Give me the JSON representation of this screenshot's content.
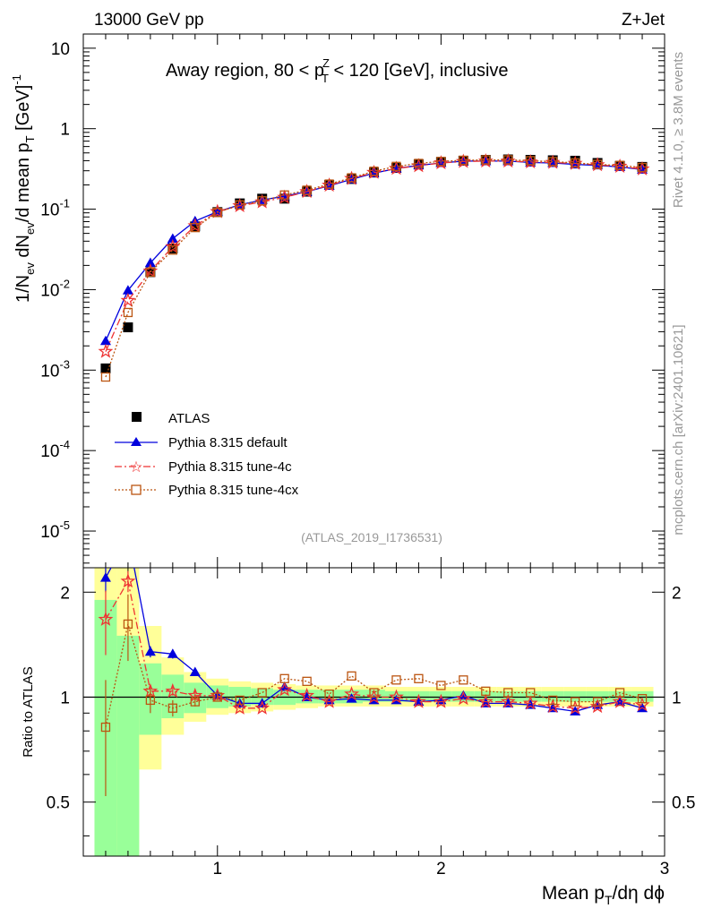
{
  "header": {
    "energy": "13000 GeV pp",
    "process": "Z+Jet",
    "title_parts": [
      "Away region, 80 < p",
      "Z",
      "T",
      " < 120 [GeV], inclusive"
    ],
    "analysis_id": "(ATLAS_2019_I1736531)",
    "rivet_label": "Rivet 4.1.0, ≥ 3.8M events",
    "source_label": "mcplots.cern.ch [arXiv:2401.10621]"
  },
  "axes": {
    "ylabel_main_parts": [
      "1/N",
      "ev",
      " dN",
      "ev",
      "/d mean p",
      "T",
      " [GeV]",
      "-1"
    ],
    "ylabel_ratio": "Ratio to ATLAS",
    "xlabel_parts": [
      "Mean p",
      "T",
      "/dη dϕ"
    ],
    "x_ticks": [
      "1",
      "2",
      "3"
    ],
    "y_main_ticks": [
      {
        "base": "10",
        "exp": "-5",
        "value": 1e-05
      },
      {
        "base": "10",
        "exp": "-4",
        "value": 0.0001
      },
      {
        "base": "10",
        "exp": "-3",
        "value": 0.001
      },
      {
        "base": "10",
        "exp": "-2",
        "value": 0.01
      },
      {
        "base": "10",
        "exp": "-1",
        "value": 0.1
      },
      {
        "base": "1",
        "exp": "",
        "value": 1
      },
      {
        "base": "10",
        "exp": "",
        "value": 10
      }
    ],
    "y_ratio_ticks": [
      "0.5",
      "1",
      "2"
    ]
  },
  "colors": {
    "atlas": "#000000",
    "default": "#0000dd",
    "tune4c": "#ee3333",
    "tune4cx": "#bb5511",
    "band_inner": "#99ff99",
    "band_outer": "#ffff99"
  },
  "legend": [
    {
      "key": "atlas",
      "label": "ATLAS"
    },
    {
      "key": "default",
      "label": "Pythia 8.315 default"
    },
    {
      "key": "tune4c",
      "label": "Pythia 8.315 tune-4c"
    },
    {
      "key": "tune4cx",
      "label": "Pythia 8.315 tune-4cx"
    }
  ],
  "chart_data": {
    "type": "line",
    "title": "Away region, 80 < pT(Z) < 120 [GeV], inclusive",
    "xlabel": "Mean pT/dη dϕ",
    "ylabel": "1/Nev dNev/d mean pT [GeV]^-1",
    "xlim": [
      0.4,
      3.0
    ],
    "ylim": [
      3.5e-06,
      15
    ],
    "yscale": "log",
    "ratio_ylim": [
      0.35,
      2.35
    ],
    "x": [
      0.5,
      0.6,
      0.7,
      0.8,
      0.9,
      1.0,
      1.1,
      1.2,
      1.3,
      1.4,
      1.5,
      1.6,
      1.7,
      1.8,
      1.9,
      2.0,
      2.1,
      2.2,
      2.3,
      2.4,
      2.5,
      2.6,
      2.7,
      2.8,
      2.9
    ],
    "series": [
      {
        "name": "ATLAS",
        "key": "atlas",
        "marker": "square",
        "values": [
          0.00105,
          0.0034,
          0.0165,
          0.0325,
          0.061,
          0.092,
          0.118,
          0.135,
          0.135,
          0.165,
          0.2,
          0.237,
          0.285,
          0.325,
          0.36,
          0.385,
          0.4,
          0.41,
          0.415,
          0.41,
          0.405,
          0.4,
          0.375,
          0.345,
          0.335
        ]
      },
      {
        "name": "Pythia 8.315 default",
        "key": "default",
        "marker": "triangle",
        "linestyle": "solid",
        "values": [
          0.0023,
          0.0098,
          0.0215,
          0.043,
          0.071,
          0.093,
          0.113,
          0.13,
          0.145,
          0.165,
          0.195,
          0.235,
          0.28,
          0.32,
          0.35,
          0.375,
          0.395,
          0.395,
          0.395,
          0.38,
          0.375,
          0.36,
          0.35,
          0.335,
          0.31
        ],
        "ratio": [
          2.2,
          2.9,
          1.35,
          1.33,
          1.18,
          1.01,
          0.96,
          0.96,
          1.07,
          1.0,
          0.98,
          0.99,
          0.98,
          0.98,
          0.97,
          0.98,
          1.01,
          0.96,
          0.96,
          0.95,
          0.93,
          0.91,
          0.95,
          0.97,
          0.93
        ],
        "ratio_err": [
          0.2,
          0.0,
          0.05,
          0.04,
          0.03,
          0.02,
          0.0,
          0.0,
          0.0,
          0.0,
          0.0,
          0.0,
          0.0,
          0.0,
          0.0,
          0.0,
          0.0,
          0.0,
          0.0,
          0.0,
          0.0,
          0.0,
          0.0,
          0.0,
          0.0
        ]
      },
      {
        "name": "Pythia 8.315 tune-4c",
        "key": "tune4c",
        "marker": "star",
        "linestyle": "dashdot",
        "values": [
          0.0017,
          0.0073,
          0.017,
          0.034,
          0.062,
          0.093,
          0.11,
          0.123,
          0.14,
          0.165,
          0.198,
          0.24,
          0.285,
          0.32,
          0.345,
          0.375,
          0.39,
          0.395,
          0.395,
          0.385,
          0.38,
          0.37,
          0.355,
          0.34,
          0.315
        ],
        "ratio": [
          1.67,
          2.15,
          1.04,
          1.04,
          1.01,
          1.01,
          0.93,
          0.93,
          1.05,
          1.01,
          0.97,
          1.02,
          1.0,
          1.0,
          0.97,
          0.97,
          0.99,
          0.97,
          0.97,
          0.96,
          0.94,
          0.93,
          0.94,
          0.97,
          0.95
        ],
        "ratio_err": [
          0.35,
          0.15,
          0.04,
          0.03,
          0.03,
          0.02,
          0.0,
          0.0,
          0.0,
          0.0,
          0.0,
          0.0,
          0.0,
          0.0,
          0.0,
          0.0,
          0.0,
          0.0,
          0.0,
          0.0,
          0.0,
          0.0,
          0.0,
          0.0,
          0.0
        ]
      },
      {
        "name": "Pythia 8.315 tune-4cx",
        "key": "tune4cx",
        "marker": "open-square",
        "linestyle": "dotted",
        "values": [
          0.00082,
          0.0052,
          0.0165,
          0.031,
          0.059,
          0.091,
          0.113,
          0.127,
          0.15,
          0.172,
          0.205,
          0.245,
          0.296,
          0.34,
          0.37,
          0.392,
          0.405,
          0.41,
          0.41,
          0.4,
          0.39,
          0.375,
          0.36,
          0.35,
          0.33
        ],
        "ratio": [
          0.82,
          1.62,
          0.98,
          0.93,
          0.97,
          1.0,
          0.98,
          1.03,
          1.13,
          1.11,
          1.02,
          1.15,
          1.03,
          1.12,
          1.13,
          1.08,
          1.12,
          1.04,
          1.03,
          1.03,
          0.98,
          0.97,
          0.97,
          1.03,
          0.99
        ],
        "ratio_err": [
          0.3,
          0.35,
          0.08,
          0.05,
          0.03,
          0.02,
          0.0,
          0.0,
          0.0,
          0.0,
          0.0,
          0.0,
          0.0,
          0.0,
          0.0,
          0.0,
          0.0,
          0.0,
          0.0,
          0.0,
          0.0,
          0.0,
          0.0,
          0.0,
          0.0
        ]
      }
    ],
    "uncertainty_bands": {
      "x_low": [
        0.45,
        0.55,
        0.65,
        0.75,
        0.85,
        0.95,
        1.05,
        1.15,
        1.25,
        1.35,
        1.45,
        1.55,
        1.65,
        1.75,
        1.85,
        1.95,
        2.05,
        2.15,
        2.25,
        2.35,
        2.45,
        2.55,
        2.65,
        2.75,
        2.85
      ],
      "x_high": [
        0.55,
        0.65,
        0.75,
        0.85,
        0.95,
        1.05,
        1.15,
        1.25,
        1.35,
        1.45,
        1.55,
        1.65,
        1.75,
        1.85,
        1.95,
        2.05,
        2.15,
        2.25,
        2.35,
        2.45,
        2.55,
        2.65,
        2.75,
        2.85,
        2.95
      ],
      "inner_low": [
        0.35,
        0.35,
        0.78,
        0.87,
        0.9,
        0.93,
        0.94,
        0.95,
        0.95,
        0.96,
        0.96,
        0.96,
        0.97,
        0.97,
        0.97,
        0.97,
        0.97,
        0.97,
        0.97,
        0.97,
        0.97,
        0.97,
        0.97,
        0.97,
        0.97
      ],
      "inner_high": [
        1.9,
        1.5,
        1.25,
        1.16,
        1.1,
        1.08,
        1.07,
        1.06,
        1.05,
        1.05,
        1.05,
        1.05,
        1.05,
        1.04,
        1.04,
        1.04,
        1.04,
        1.04,
        1.04,
        1.04,
        1.04,
        1.04,
        1.04,
        1.04,
        1.04
      ],
      "outer_low": [
        0.35,
        0.35,
        0.62,
        0.78,
        0.85,
        0.89,
        0.9,
        0.91,
        0.92,
        0.93,
        0.94,
        0.94,
        0.94,
        0.94,
        0.94,
        0.94,
        0.94,
        0.94,
        0.94,
        0.94,
        0.94,
        0.94,
        0.94,
        0.94,
        0.94
      ],
      "outer_high": [
        2.35,
        2.35,
        1.6,
        1.3,
        1.18,
        1.13,
        1.11,
        1.1,
        1.09,
        1.08,
        1.08,
        1.08,
        1.08,
        1.07,
        1.07,
        1.07,
        1.07,
        1.07,
        1.07,
        1.07,
        1.07,
        1.07,
        1.07,
        1.07,
        1.07
      ]
    }
  }
}
